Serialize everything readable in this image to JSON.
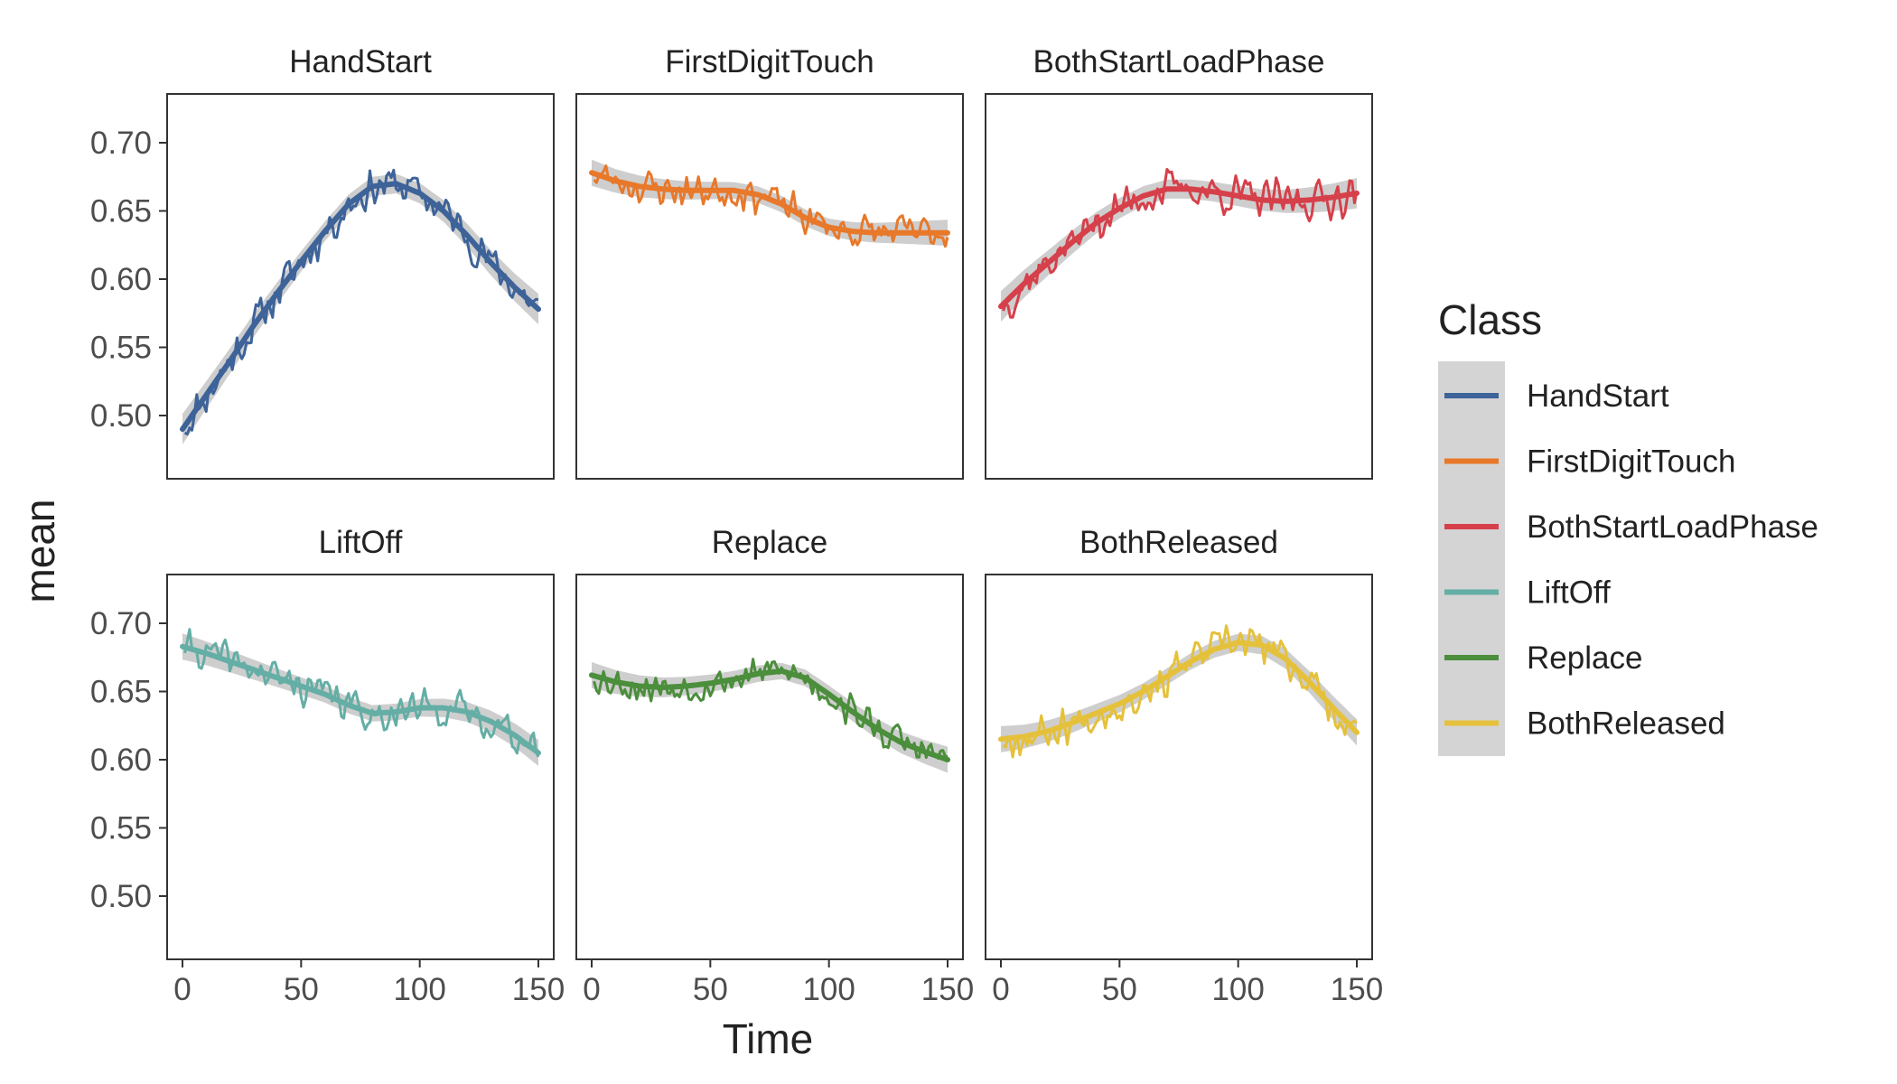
{
  "chart_data": {
    "type": "line",
    "layout": "facet-grid",
    "xlabel": "Time",
    "ylabel": "mean",
    "xlim": [
      0,
      150
    ],
    "ylim": [
      0.45,
      0.72
    ],
    "x_ticks": [
      0,
      50,
      100,
      150
    ],
    "y_ticks": [
      0.5,
      0.55,
      0.6,
      0.65,
      0.7
    ],
    "y_tick_labels": [
      "0.50",
      "0.55",
      "0.60",
      "0.65",
      "0.70"
    ],
    "legend": {
      "title": "Class",
      "position": "right",
      "entries": [
        "HandStart",
        "FirstDigitTouch",
        "BothStartLoadPhase",
        "LiftOff",
        "Replace",
        "BothReleased"
      ]
    },
    "series_style": "raw line with smoothed trend and confidence band",
    "series": [
      {
        "name": "HandStart",
        "color": "#3d6399",
        "trend_x": [
          0,
          10,
          20,
          30,
          40,
          50,
          60,
          70,
          80,
          90,
          100,
          110,
          120,
          130,
          140,
          150
        ],
        "trend_y": [
          0.49,
          0.515,
          0.54,
          0.566,
          0.59,
          0.613,
          0.635,
          0.655,
          0.668,
          0.67,
          0.663,
          0.65,
          0.632,
          0.612,
          0.594,
          0.578
        ],
        "trend_band": 0.007,
        "noise": 0.018,
        "seed": 11
      },
      {
        "name": "FirstDigitTouch",
        "color": "#e8782a",
        "trend_x": [
          0,
          10,
          20,
          30,
          40,
          50,
          60,
          70,
          80,
          90,
          100,
          110,
          120,
          130,
          140,
          150
        ],
        "trend_y": [
          0.678,
          0.672,
          0.668,
          0.666,
          0.665,
          0.665,
          0.665,
          0.662,
          0.655,
          0.645,
          0.638,
          0.635,
          0.634,
          0.634,
          0.634,
          0.634
        ],
        "trend_band": 0.006,
        "noise": 0.016,
        "seed": 23
      },
      {
        "name": "BothStartLoadPhase",
        "color": "#d6404a",
        "trend_x": [
          0,
          10,
          20,
          30,
          40,
          50,
          60,
          70,
          80,
          90,
          100,
          110,
          120,
          130,
          140,
          150
        ],
        "trend_y": [
          0.58,
          0.597,
          0.612,
          0.627,
          0.641,
          0.652,
          0.661,
          0.666,
          0.666,
          0.664,
          0.661,
          0.658,
          0.657,
          0.658,
          0.66,
          0.663
        ],
        "trend_band": 0.007,
        "noise": 0.018,
        "seed": 37
      },
      {
        "name": "LiftOff",
        "color": "#64aea5",
        "trend_x": [
          0,
          10,
          20,
          30,
          40,
          50,
          60,
          70,
          80,
          90,
          100,
          110,
          120,
          130,
          140,
          150
        ],
        "trend_y": [
          0.683,
          0.678,
          0.672,
          0.666,
          0.66,
          0.654,
          0.648,
          0.64,
          0.634,
          0.635,
          0.638,
          0.638,
          0.635,
          0.628,
          0.618,
          0.605
        ],
        "trend_band": 0.006,
        "noise": 0.016,
        "seed": 41
      },
      {
        "name": "Replace",
        "color": "#4b8e3b",
        "trend_x": [
          0,
          10,
          20,
          30,
          40,
          50,
          60,
          70,
          80,
          90,
          100,
          110,
          120,
          130,
          140,
          150
        ],
        "trend_y": [
          0.662,
          0.657,
          0.654,
          0.653,
          0.654,
          0.656,
          0.659,
          0.663,
          0.665,
          0.66,
          0.648,
          0.635,
          0.623,
          0.613,
          0.606,
          0.6
        ],
        "trend_band": 0.006,
        "noise": 0.015,
        "seed": 53
      },
      {
        "name": "BothReleased",
        "color": "#e5c13b",
        "trend_x": [
          0,
          10,
          20,
          30,
          40,
          50,
          60,
          70,
          80,
          90,
          100,
          110,
          120,
          130,
          140,
          150
        ],
        "trend_y": [
          0.615,
          0.617,
          0.621,
          0.627,
          0.634,
          0.641,
          0.65,
          0.661,
          0.672,
          0.681,
          0.686,
          0.684,
          0.674,
          0.657,
          0.638,
          0.62
        ],
        "trend_band": 0.006,
        "noise": 0.017,
        "seed": 67
      }
    ]
  },
  "colors": {
    "band": "#bdbdbd",
    "legend_key_bg": "#d4d4d4",
    "panel_border": "#333333",
    "tick_text": "#4d4d4d"
  }
}
